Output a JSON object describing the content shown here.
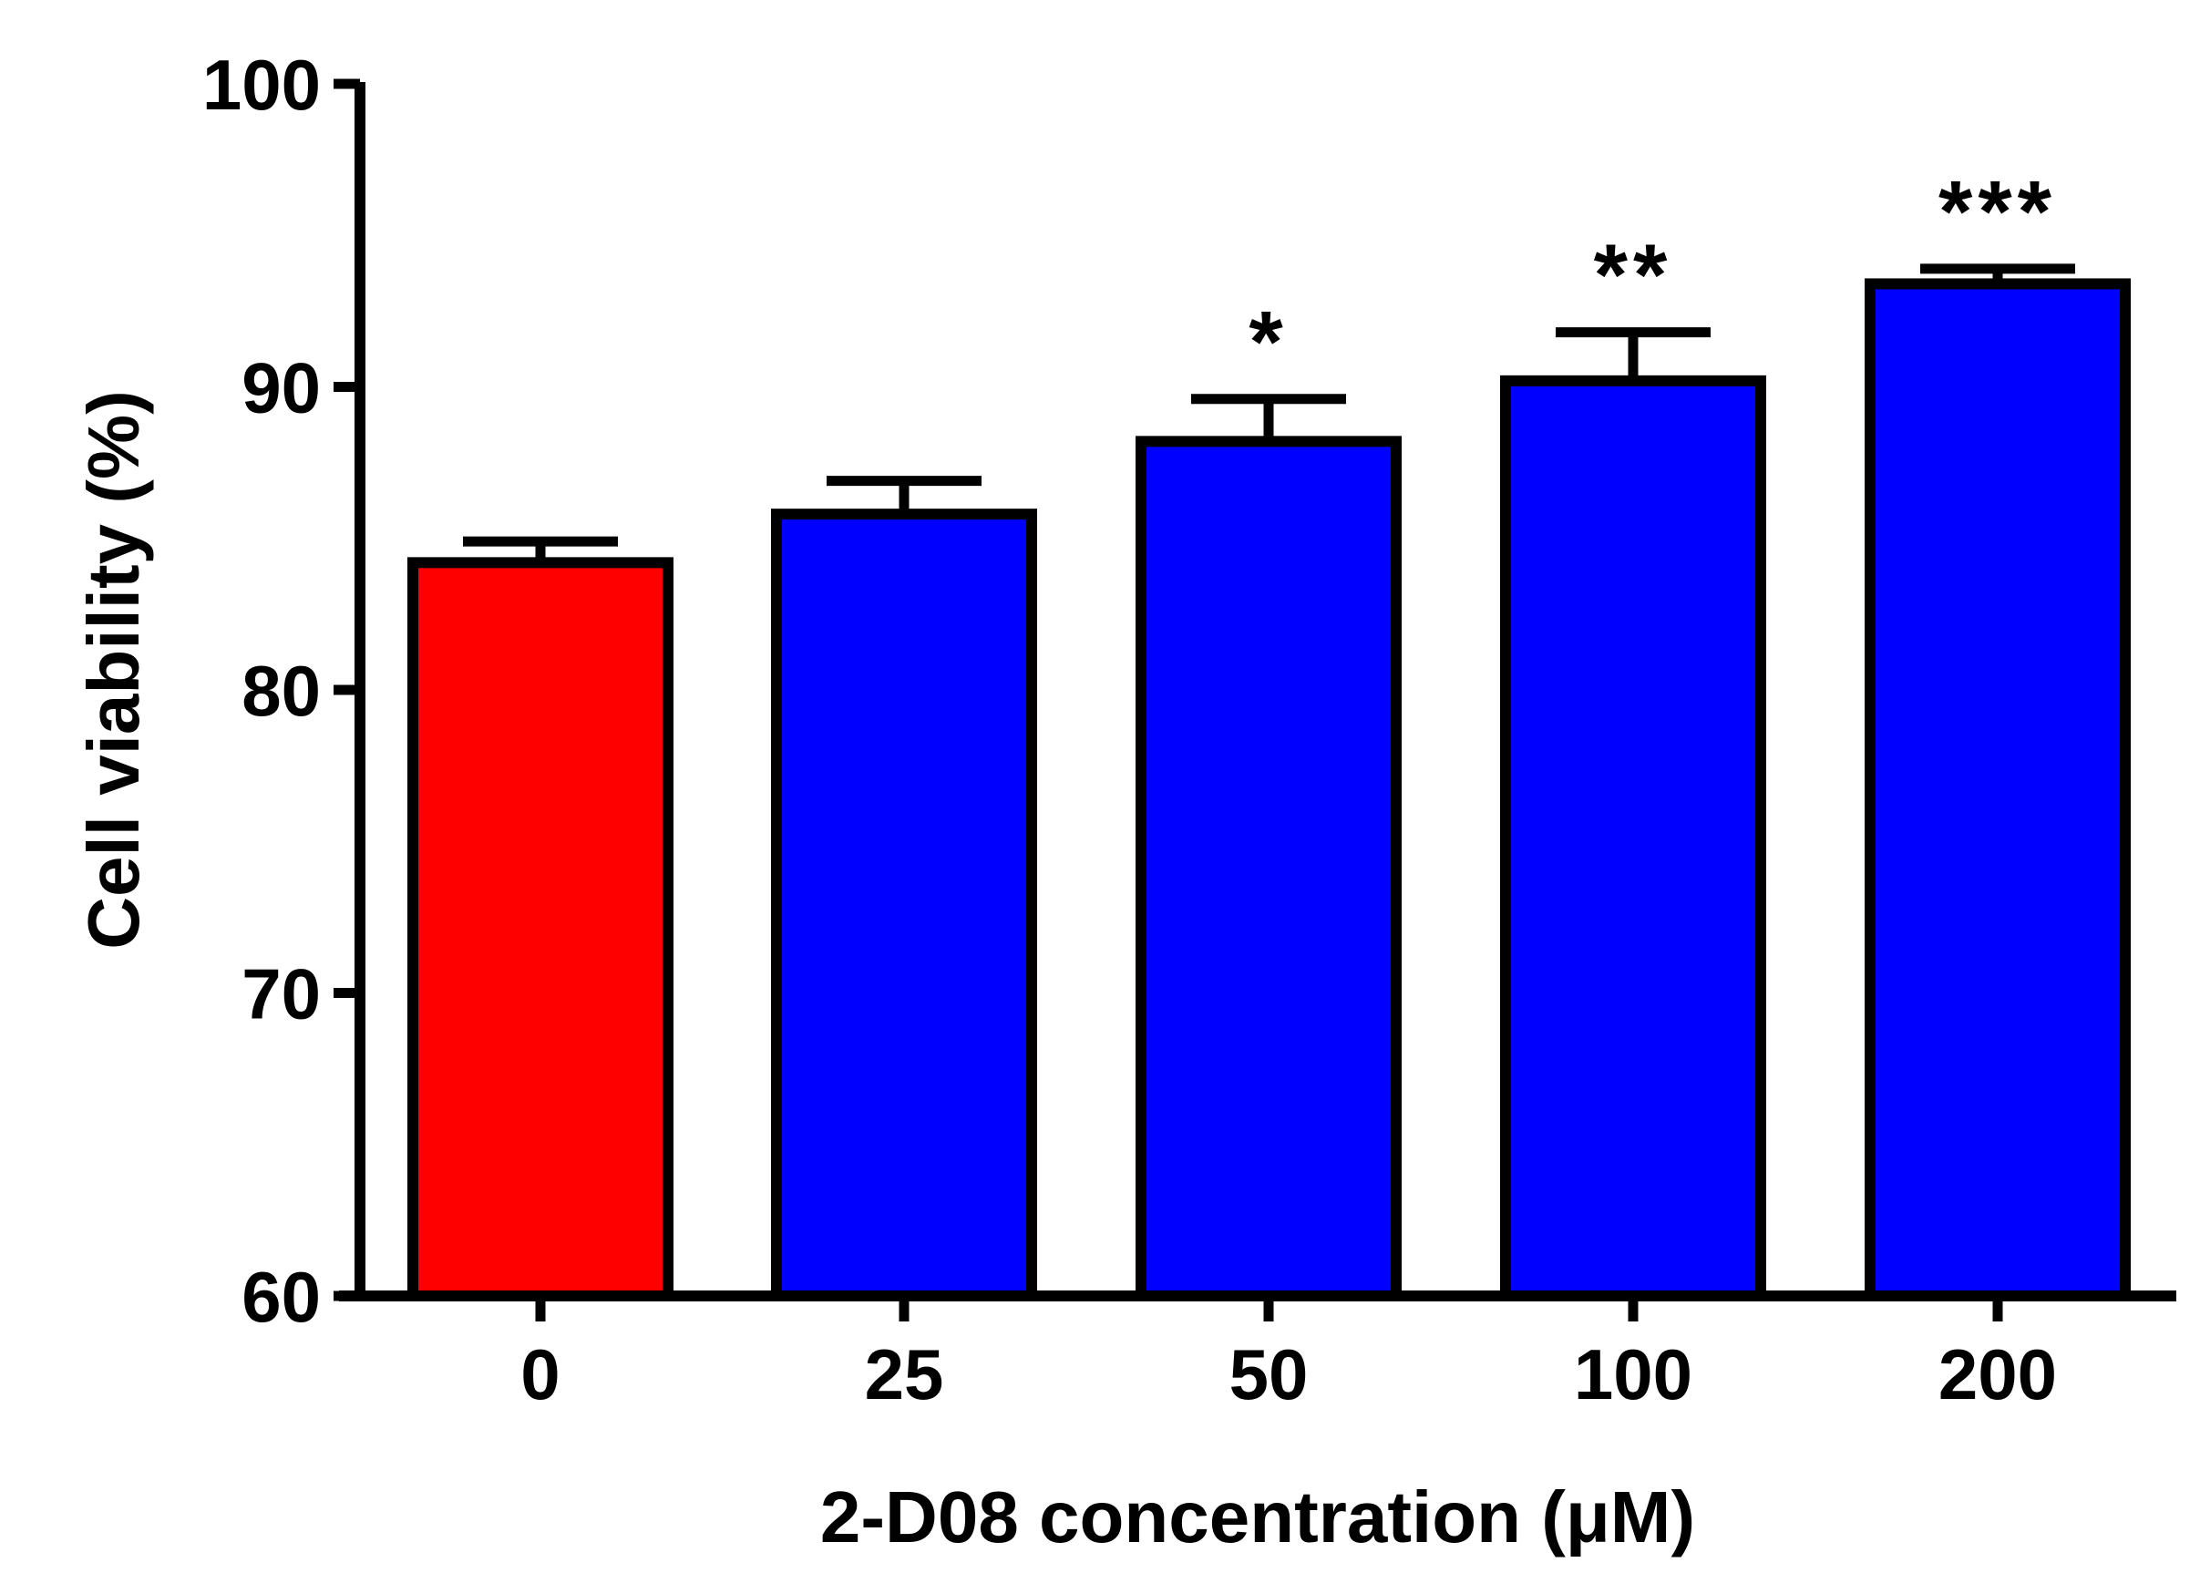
{
  "chart_data": {
    "type": "bar",
    "title": "",
    "xlabel": "2-D08 concentration (μM)",
    "ylabel": "Cell viability (%)",
    "ylim": [
      60,
      100
    ],
    "yticks": [
      "60",
      "70",
      "80",
      "90",
      "100"
    ],
    "categories": [
      "0",
      "25",
      "50",
      "100",
      "200"
    ],
    "values": [
      84.2,
      85.8,
      88.2,
      90.2,
      93.4
    ],
    "errors": [
      0.7,
      1.1,
      1.4,
      1.6,
      0.5
    ],
    "significance": [
      "",
      "",
      "*",
      "**",
      "***"
    ],
    "colors": [
      "#ff0000",
      "#0000ff",
      "#0000ff",
      "#0000ff",
      "#0000ff"
    ],
    "grid": false,
    "legend": "none"
  }
}
